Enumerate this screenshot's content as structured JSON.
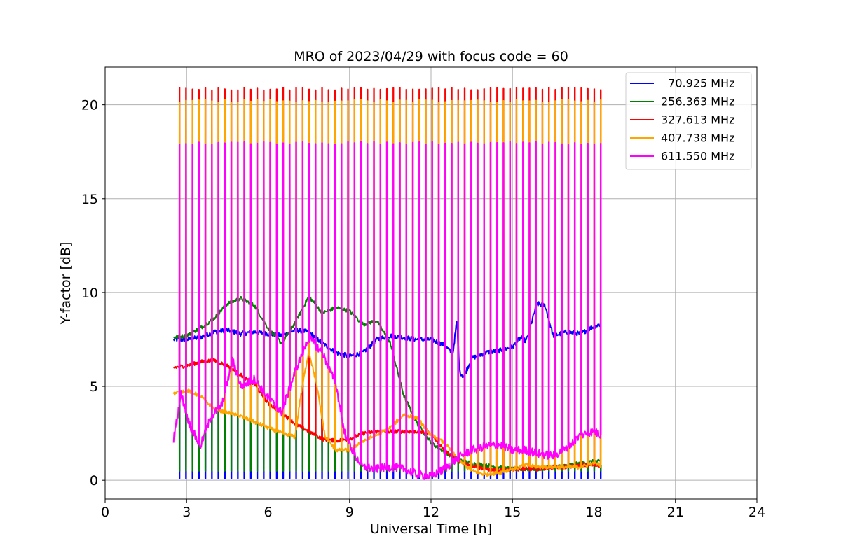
{
  "chart_data": {
    "type": "line",
    "title": "MRO of 2023/04/29 with focus code = 60",
    "xlabel": "Universal Time [h]",
    "ylabel": "Y-factor [dB]",
    "xlim": [
      0,
      24
    ],
    "ylim": [
      -1,
      22
    ],
    "xticks": [
      0,
      3,
      6,
      9,
      12,
      15,
      18,
      21,
      24
    ],
    "yticks": [
      0,
      5,
      10,
      15,
      20
    ],
    "grid": true,
    "legend_position": "top-right",
    "pulse_train": {
      "x_start": 2.5,
      "x_end": 18.25,
      "count": 66
    },
    "series": [
      {
        "name": "  70.925 MHz",
        "color": "#0000ff",
        "pulse_peak": null,
        "pulse_floor": 0.1,
        "baseline": {
          "x": [
            2.5,
            3.0,
            3.5,
            4.0,
            4.5,
            5.0,
            5.5,
            6.0,
            6.5,
            7.0,
            7.5,
            8.0,
            8.5,
            9.0,
            9.5,
            10.0,
            10.5,
            11.0,
            11.5,
            12.0,
            12.5,
            12.8,
            12.95,
            13.05,
            13.2,
            13.5,
            14.0,
            14.5,
            15.0,
            15.3,
            15.5,
            15.9,
            16.2,
            16.5,
            17.0,
            17.5,
            18.0,
            18.25
          ],
          "y": [
            7.5,
            7.5,
            7.6,
            7.9,
            8.0,
            7.8,
            7.9,
            7.8,
            7.7,
            8.0,
            7.9,
            7.3,
            6.8,
            6.6,
            6.8,
            7.5,
            7.7,
            7.6,
            7.5,
            7.5,
            7.2,
            6.7,
            8.5,
            5.8,
            5.5,
            6.5,
            6.8,
            6.9,
            7.1,
            7.6,
            7.4,
            9.4,
            9.3,
            7.7,
            7.9,
            7.8,
            8.2,
            8.3
          ]
        }
      },
      {
        "name": "256.363 MHz",
        "color": "#008000",
        "pulse_peak": null,
        "pulse_floor": 0.5,
        "baseline": {
          "x": [
            2.5,
            3.0,
            3.5,
            4.0,
            4.5,
            5.0,
            5.5,
            6.0,
            6.5,
            7.0,
            7.5,
            8.0,
            8.5,
            9.0,
            9.5,
            10.0,
            10.5,
            11.0,
            11.5,
            12.0,
            12.5,
            13.0,
            13.5,
            14.0,
            14.5,
            15.0,
            15.5,
            16.0,
            16.5,
            17.0,
            17.5,
            18.0,
            18.25
          ],
          "y": [
            7.6,
            7.7,
            8.1,
            8.6,
            9.4,
            9.7,
            9.3,
            8.1,
            7.3,
            8.4,
            9.8,
            8.9,
            9.2,
            9.0,
            8.3,
            8.5,
            7.3,
            4.5,
            3.0,
            2.0,
            1.5,
            1.1,
            0.9,
            0.8,
            0.7,
            0.6,
            0.6,
            0.6,
            0.7,
            0.8,
            0.9,
            1.0,
            1.0
          ]
        }
      },
      {
        "name": "327.613 MHz",
        "color": "#ff0000",
        "pulse_peak": 20.85,
        "pulse_floor": null,
        "baseline": {
          "x": [
            2.5,
            3.0,
            3.5,
            4.0,
            4.5,
            5.0,
            5.5,
            6.0,
            6.5,
            7.0,
            7.5,
            8.0,
            8.5,
            9.0,
            9.5,
            10.0,
            10.5,
            11.0,
            11.5,
            12.0,
            12.5,
            13.0,
            13.5,
            14.0,
            14.5,
            15.0,
            15.5,
            16.0,
            16.5,
            17.0,
            17.5,
            18.0,
            18.25
          ],
          "y": [
            6.0,
            6.1,
            6.3,
            6.4,
            6.1,
            5.6,
            5.1,
            4.1,
            3.6,
            3.0,
            2.6,
            2.2,
            2.1,
            2.2,
            2.5,
            2.6,
            2.6,
            2.6,
            2.6,
            2.5,
            1.6,
            1.0,
            0.8,
            0.6,
            0.5,
            0.6,
            0.6,
            0.6,
            0.7,
            0.7,
            0.8,
            0.8,
            0.8
          ]
        }
      },
      {
        "name": "407.738 MHz",
        "color": "#ffa500",
        "pulse_peak": 20.2,
        "pulse_floor": null,
        "baseline": {
          "x": [
            2.5,
            3.0,
            3.5,
            4.0,
            4.5,
            5.0,
            5.5,
            6.0,
            6.5,
            7.0,
            7.2,
            7.5,
            7.8,
            8.1,
            8.5,
            9.0,
            9.5,
            10.0,
            10.5,
            11.0,
            11.5,
            12.0,
            12.5,
            13.0,
            13.5,
            14.0,
            14.5,
            15.0,
            15.5,
            16.0,
            16.5,
            17.0,
            17.5,
            18.0,
            18.25
          ],
          "y": [
            4.6,
            4.8,
            4.5,
            3.8,
            3.6,
            3.4,
            3.1,
            2.8,
            2.5,
            2.3,
            4.5,
            6.9,
            5.0,
            2.3,
            1.6,
            1.6,
            2.1,
            2.4,
            2.8,
            3.5,
            3.3,
            2.4,
            2.0,
            1.1,
            0.5,
            0.3,
            0.4,
            0.6,
            0.8,
            0.7,
            0.7,
            0.7,
            0.7,
            0.9,
            0.8
          ]
        }
      },
      {
        "name": "611.550 MHz",
        "color": "#ff00ff",
        "pulse_peak": 17.95,
        "pulse_floor": null,
        "baseline": {
          "x": [
            2.5,
            2.8,
            3.1,
            3.5,
            3.9,
            4.3,
            4.7,
            5.0,
            5.5,
            6.0,
            6.5,
            7.0,
            7.5,
            8.0,
            8.5,
            8.8,
            9.2,
            9.5,
            10.0,
            10.5,
            11.0,
            11.5,
            12.0,
            12.5,
            13.0,
            13.5,
            14.0,
            14.5,
            15.0,
            15.5,
            16.0,
            16.5,
            17.0,
            17.5,
            18.0,
            18.25
          ],
          "y": [
            2.0,
            4.6,
            3.0,
            1.8,
            3.4,
            4.0,
            6.4,
            5.0,
            5.4,
            4.4,
            3.6,
            5.8,
            7.6,
            6.8,
            5.1,
            2.6,
            1.3,
            0.7,
            0.6,
            0.7,
            0.6,
            0.3,
            0.2,
            0.6,
            1.2,
            1.6,
            1.8,
            1.9,
            1.6,
            1.6,
            1.4,
            1.3,
            1.7,
            2.4,
            2.6,
            2.4
          ]
        }
      }
    ]
  }
}
